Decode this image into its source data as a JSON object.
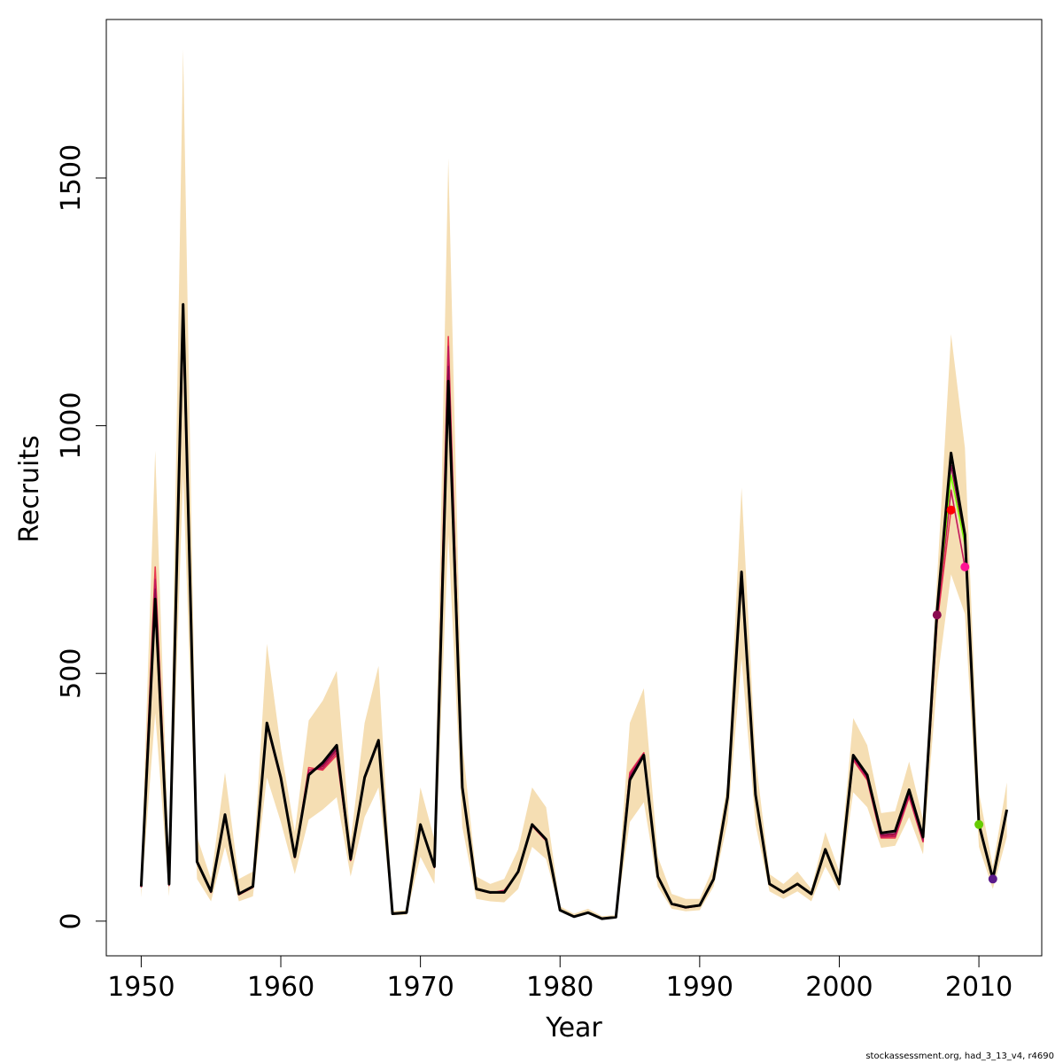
{
  "chart_data": {
    "type": "line",
    "xlabel": "Year",
    "ylabel": "Recruits",
    "xlim": [
      1947.5,
      2014.5
    ],
    "ylim": [
      -70,
      1820
    ],
    "x_ticks": [
      1950,
      1960,
      1970,
      1980,
      1990,
      2000,
      2010
    ],
    "y_ticks": [
      0,
      500,
      1000,
      1500
    ],
    "grid": false,
    "legend": "none",
    "colors": {
      "band": "#F5DEB3",
      "main": "#000000",
      "retro": [
        "#E8384F",
        "#B0103A",
        "#C2185B",
        "#8B0A50"
      ],
      "highlight_line": "#7CFC00"
    },
    "confidence_band": {
      "x": [
        1950,
        1951,
        1952,
        1953,
        1954,
        1955,
        1956,
        1957,
        1958,
        1959,
        1960,
        1961,
        1962,
        1963,
        1964,
        1965,
        1966,
        1967,
        1968,
        1969,
        1970,
        1971,
        1972,
        1973,
        1974,
        1975,
        1976,
        1977,
        1978,
        1979,
        1980,
        1981,
        1982,
        1983,
        1984,
        1985,
        1986,
        1987,
        1988,
        1989,
        1990,
        1991,
        1992,
        1993,
        1994,
        1995,
        1996,
        1997,
        1998,
        1999,
        2000,
        2001,
        2002,
        2003,
        2004,
        2005,
        2006,
        2007,
        2008,
        2009,
        2010,
        2011,
        2012
      ],
      "lower": [
        48,
        420,
        50,
        900,
        85,
        40,
        150,
        40,
        50,
        290,
        200,
        95,
        205,
        225,
        250,
        90,
        210,
        270,
        12,
        13,
        130,
        75,
        780,
        190,
        45,
        40,
        38,
        65,
        150,
        125,
        20,
        8,
        15,
        4,
        6,
        200,
        240,
        70,
        25,
        20,
        22,
        70,
        200,
        530,
        195,
        60,
        45,
        60,
        40,
        110,
        60,
        260,
        230,
        148,
        152,
        210,
        135,
        480,
        700,
        620,
        150,
        65,
        170
      ],
      "upper": [
        95,
        950,
        110,
        1760,
        170,
        85,
        300,
        85,
        100,
        560,
        350,
        180,
        405,
        445,
        505,
        160,
        400,
        515,
        20,
        22,
        270,
        165,
        1540,
        360,
        90,
        75,
        85,
        145,
        270,
        230,
        30,
        15,
        25,
        10,
        12,
        400,
        470,
        130,
        55,
        45,
        45,
        110,
        280,
        875,
        330,
        95,
        75,
        100,
        65,
        180,
        100,
        410,
        355,
        218,
        222,
        322,
        205,
        690,
        1185,
        955,
        260,
        110,
        280
      ]
    },
    "series": [
      {
        "name": "",
        "color": "#000000",
        "x": [
          1950,
          1951,
          1952,
          1953,
          1954,
          1955,
          1956,
          1957,
          1958,
          1959,
          1960,
          1961,
          1962,
          1963,
          1964,
          1965,
          1966,
          1967,
          1968,
          1969,
          1970,
          1971,
          1972,
          1973,
          1974,
          1975,
          1976,
          1977,
          1978,
          1979,
          1980,
          1981,
          1982,
          1983,
          1984,
          1985,
          1986,
          1987,
          1988,
          1989,
          1990,
          1991,
          1992,
          1993,
          1994,
          1995,
          1996,
          1997,
          1998,
          1999,
          2000,
          2001,
          2002,
          2003,
          2004,
          2005,
          2006,
          2007,
          2008,
          2009,
          2010,
          2011,
          2012
        ],
        "values": [
          70,
          650,
          75,
          1245,
          120,
          60,
          215,
          55,
          70,
          400,
          290,
          130,
          295,
          320,
          355,
          125,
          290,
          365,
          15,
          17,
          195,
          110,
          1090,
          270,
          65,
          58,
          58,
          100,
          195,
          165,
          22,
          9,
          17,
          5,
          8,
          285,
          335,
          90,
          35,
          28,
          32,
          85,
          250,
          705,
          255,
          75,
          58,
          75,
          55,
          145,
          75,
          335,
          295,
          178,
          182,
          265,
          170,
          625,
          945,
          780,
          195,
          85,
          225
        ]
      },
      {
        "name": "",
        "color": "#E8384F",
        "x": [
          1950,
          1951,
          1952,
          1953,
          1954,
          1955,
          1956,
          1957,
          1958,
          1959,
          1960,
          1961,
          1962,
          1963,
          1964,
          1965,
          1966,
          1967,
          1968,
          1969,
          1970,
          1971,
          1972,
          1973,
          1974,
          1975,
          1976,
          1977,
          1978,
          1979,
          1980,
          1981,
          1982,
          1983,
          1984,
          1985,
          1986,
          1987,
          1988,
          1989,
          1990,
          1991,
          1992,
          1993,
          1994,
          1995,
          1996,
          1997,
          1998,
          1999,
          2000,
          2001,
          2002,
          2003,
          2004,
          2005,
          2006,
          2007,
          2008
        ],
        "values": [
          68,
          715,
          72,
          1200,
          118,
          58,
          210,
          53,
          68,
          395,
          285,
          128,
          310,
          305,
          335,
          122,
          287,
          362,
          15,
          17,
          192,
          108,
          1180,
          268,
          64,
          57,
          62,
          98,
          192,
          162,
          22,
          9,
          17,
          5,
          8,
          300,
          340,
          88,
          34,
          27,
          31,
          84,
          248,
          690,
          252,
          74,
          57,
          74,
          54,
          143,
          74,
          325,
          285,
          168,
          168,
          250,
          160,
          600,
          830
        ]
      },
      {
        "name": "",
        "color": "#B0103A",
        "x": [
          1950,
          1951,
          1952,
          1953,
          1954,
          1955,
          1956,
          1957,
          1958,
          1959,
          1960,
          1961,
          1962,
          1963,
          1964,
          1965,
          1966,
          1967,
          1968,
          1969,
          1970,
          1971,
          1972,
          1973,
          1974,
          1975,
          1976,
          1977,
          1978,
          1979,
          1980,
          1981,
          1982,
          1983,
          1984,
          1985,
          1986,
          1987,
          1988,
          1989,
          1990,
          1991,
          1992,
          1993,
          1994,
          1995,
          1996,
          1997,
          1998,
          1999,
          2000,
          2001,
          2002,
          2003,
          2004,
          2005,
          2006,
          2007
        ],
        "values": [
          70,
          680,
          74,
          1220,
          119,
          59,
          212,
          54,
          69,
          398,
          288,
          129,
          300,
          312,
          345,
          123,
          289,
          364,
          15,
          17,
          194,
          109,
          1140,
          269,
          64,
          57,
          60,
          99,
          194,
          164,
          22,
          9,
          17,
          5,
          8,
          292,
          337,
          89,
          34,
          27,
          31,
          84,
          249,
          698,
          254,
          75,
          58,
          75,
          55,
          144,
          75,
          330,
          290,
          172,
          174,
          258,
          165,
          615
        ]
      },
      {
        "name": "",
        "color": "#C2185B",
        "x": [
          1950,
          1951,
          1952,
          1953,
          1954,
          1955,
          1956,
          1957,
          1958,
          1959,
          1960,
          1961,
          1962,
          1963,
          1964,
          1965,
          1966,
          1967,
          1968,
          1969,
          1970,
          1971,
          1972,
          1973,
          1974,
          1975,
          1976,
          1977,
          1978,
          1979,
          1980,
          1981,
          1982,
          1983,
          1984,
          1985,
          1986,
          1987,
          1988,
          1989,
          1990,
          1991,
          1992,
          1993,
          1994,
          1995,
          1996,
          1997,
          1998,
          1999,
          2000,
          2001,
          2002,
          2003,
          2004,
          2005,
          2006,
          2007,
          2008,
          2009
        ],
        "values": [
          69,
          690,
          73,
          1210,
          118,
          58,
          211,
          54,
          69,
          397,
          287,
          129,
          305,
          308,
          340,
          123,
          288,
          363,
          15,
          17,
          193,
          109,
          1160,
          268,
          64,
          57,
          61,
          98,
          193,
          163,
          22,
          9,
          17,
          5,
          8,
          296,
          338,
          89,
          34,
          27,
          31,
          84,
          248,
          694,
          253,
          74,
          57,
          74,
          54,
          143,
          74,
          328,
          288,
          170,
          171,
          254,
          162,
          608,
          870,
          715
        ]
      },
      {
        "name": "",
        "color": "#7CFC00",
        "x": [
          2007,
          2008,
          2009,
          2010
        ],
        "values": [
          620,
          900,
          760,
          195
        ]
      },
      {
        "name": "",
        "color": "#8B0A50",
        "x": [
          1950,
          1951,
          1952,
          1953,
          1954,
          1955,
          1956,
          1957,
          1958,
          1959,
          1960,
          1961,
          1962,
          1963,
          1964,
          1965,
          1966,
          1967,
          1968,
          1969,
          1970,
          1971,
          1972,
          1973,
          1974,
          1975,
          1976,
          1977,
          1978,
          1979,
          1980,
          1981,
          1982,
          1983,
          1984,
          1985,
          1986,
          1987,
          1988,
          1989,
          1990,
          1991,
          1992,
          1993,
          1994,
          1995,
          1996,
          1997,
          1998,
          1999,
          2000,
          2001,
          2002,
          2003,
          2004,
          2005,
          2006,
          2007,
          2008,
          2009,
          2010,
          2011
        ],
        "values": [
          70,
          670,
          74,
          1230,
          120,
          59,
          213,
          54,
          69,
          399,
          289,
          129,
          298,
          315,
          348,
          124,
          289,
          364,
          15,
          17,
          194,
          109,
          1120,
          269,
          65,
          58,
          59,
          99,
          194,
          164,
          22,
          9,
          17,
          5,
          8,
          289,
          336,
          89,
          35,
          28,
          32,
          85,
          249,
          700,
          254,
          75,
          58,
          75,
          55,
          144,
          75,
          332,
          292,
          174,
          177,
          260,
          167,
          618,
          920,
          770,
          200,
          85
        ]
      }
    ],
    "endpoints": [
      {
        "x": 2007,
        "y": 618,
        "color": "#8B0A50"
      },
      {
        "x": 2008,
        "y": 830,
        "color": "#FF0000"
      },
      {
        "x": 2009,
        "y": 715,
        "color": "#FF1493"
      },
      {
        "x": 2010,
        "y": 195,
        "color": "#66CC00"
      },
      {
        "x": 2011,
        "y": 85,
        "color": "#5B1A8A"
      }
    ]
  },
  "footer": "stockassessment.org, had_3_13_v4, r4690"
}
